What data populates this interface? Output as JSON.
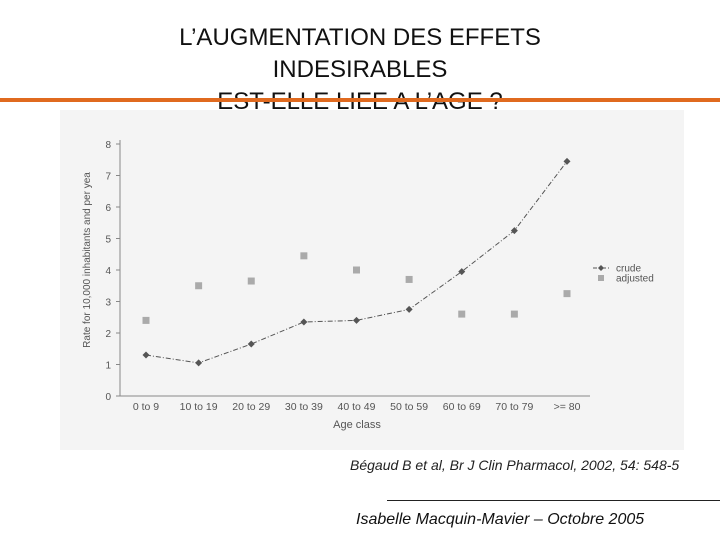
{
  "slide": {
    "title_lines": [
      "L’AUGMENTATION DES EFFETS",
      "INDESIRABLES",
      "EST-ELLE LIEE A L’AGE ?"
    ],
    "reference": "Bégaud B et al, Br J Clin Pharmacol, 2002, 54: 548-5",
    "author": "Isabelle Macquin-Mavier – Octobre 2005",
    "accent_color": "#e06a1f"
  },
  "chart_data": {
    "type": "line",
    "title": "",
    "xlabel": "Age class",
    "ylabel": "Rate for 10,000 inhabitants and per yea",
    "ylim": [
      0,
      8
    ],
    "yticks": [
      0,
      1,
      2,
      3,
      4,
      5,
      6,
      7,
      8
    ],
    "categories": [
      "0 to 9",
      "10 to 19",
      "20 to 29",
      "30 to 39",
      "40 to 49",
      "50 to 59",
      "60 to 69",
      "70 to 79",
      ">= 80"
    ],
    "legend_position": "right",
    "grid": false,
    "series": [
      {
        "name": "crude",
        "marker": "diamond",
        "line": "dash-dot",
        "color": "#555555",
        "values": [
          1.3,
          1.05,
          1.65,
          2.35,
          2.4,
          2.75,
          3.95,
          5.25,
          7.45
        ]
      },
      {
        "name": "adjusted",
        "marker": "square",
        "line": "none",
        "color": "#aaaaaa",
        "values": [
          2.4,
          3.5,
          3.65,
          4.45,
          4.0,
          3.7,
          2.6,
          2.6,
          3.25
        ]
      }
    ]
  }
}
